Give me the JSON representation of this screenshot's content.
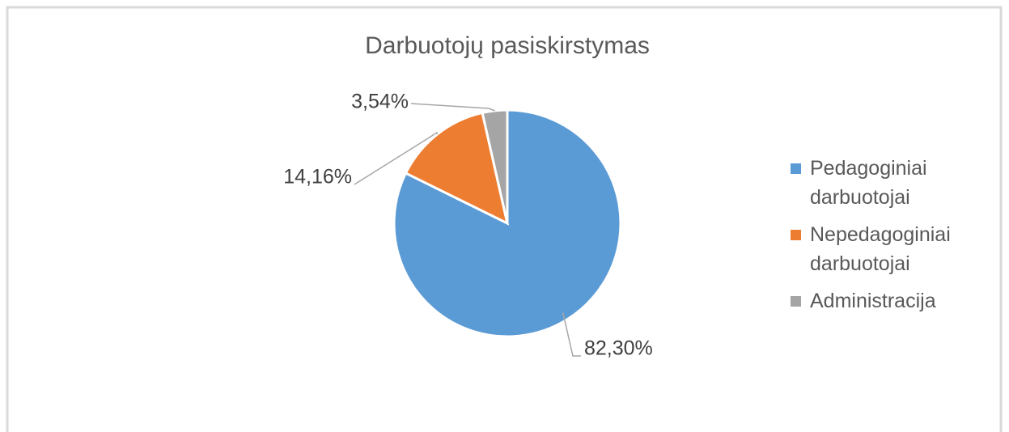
{
  "chart_data": {
    "type": "pie",
    "title": "Darbuotojų pasiskirstymas",
    "categories": [
      "Pedagoginiai darbuotojai",
      "Nepedagoginiai darbuotojai",
      "Administracija"
    ],
    "values": [
      82.3,
      14.16,
      3.54
    ],
    "value_labels": [
      "82,30%",
      "14,16%",
      "3,54%"
    ],
    "colors": [
      "#5b9bd5",
      "#ed7d31",
      "#a5a5a5"
    ],
    "legend": "right"
  }
}
